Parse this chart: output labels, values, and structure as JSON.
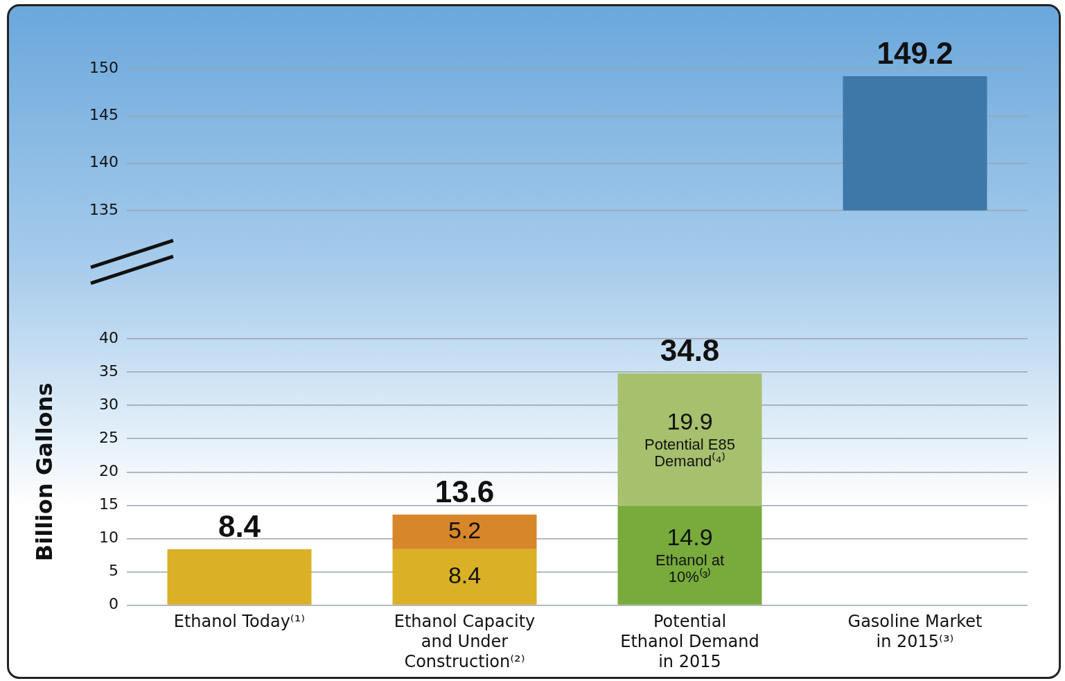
{
  "chart_data": [
    {
      "type": "bar",
      "categories": [
        null,
        null,
        null,
        null
      ],
      "series": [
        {
          "color": "#3d78a9",
          "values": [
            null,
            null,
            null,
            149.2
          ]
        }
      ],
      "ylim": [
        135,
        150
      ],
      "yticks": [
        135,
        140,
        145,
        150
      ],
      "grid": "y",
      "legend": false,
      "tick_labels": "y",
      "totals": [
        null,
        null,
        null,
        "149.2"
      ]
    },
    {
      "type": "bar",
      "ylabel": "Billion Gallons",
      "categories": [
        "Ethanol Today⁽¹⁾",
        "Ethanol Capacity and Under Construction⁽²⁾",
        "Potential Ethanol Demand in 2015",
        "Gasoline Market in 2015⁽³⁾"
      ],
      "stacked": true,
      "series": [
        {
          "colors": [
            "#d9b026",
            "#d9b026",
            "#78aa3c",
            null
          ],
          "values": [
            8.4,
            8.4,
            14.9,
            null
          ],
          "value_labels": [
            null,
            "8.4",
            "14.9\nEthanol at 10%⁽³⁾",
            null
          ]
        },
        {
          "colors": [
            null,
            "#d8862a",
            "#a6c06e",
            null
          ],
          "values": [
            null,
            5.2,
            19.9,
            null
          ],
          "value_labels": [
            null,
            "5.2",
            "19.9\nPotential E85 Demand⁽⁴⁾",
            null
          ]
        }
      ],
      "ylim": [
        0,
        40
      ],
      "yticks": [
        0,
        5,
        10,
        15,
        20,
        25,
        30,
        35,
        40
      ],
      "grid": "y",
      "legend": false,
      "totals": [
        "8.4",
        "13.6",
        "34.8",
        null
      ]
    }
  ]
}
